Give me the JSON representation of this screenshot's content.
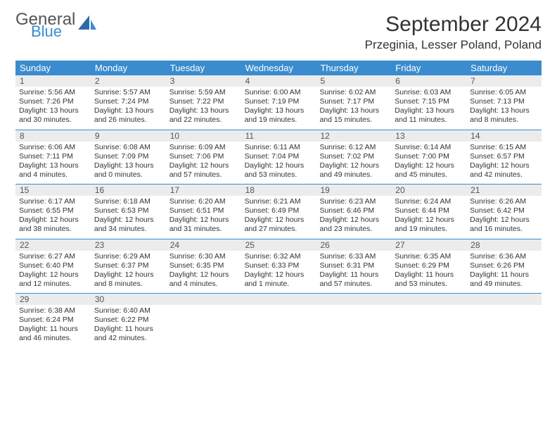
{
  "logo": {
    "general": "General",
    "blue": "Blue"
  },
  "title": "September 2024",
  "location": "Przeginia, Lesser Poland, Poland",
  "colors": {
    "header_bg": "#3a8cce",
    "daynum_bg": "#ececec",
    "border": "#3a8cce",
    "text": "#333333",
    "logo_gray": "#545454",
    "logo_blue": "#3a8cce"
  },
  "day_names": [
    "Sunday",
    "Monday",
    "Tuesday",
    "Wednesday",
    "Thursday",
    "Friday",
    "Saturday"
  ],
  "days": [
    {
      "n": "1",
      "sunrise": "Sunrise: 5:56 AM",
      "sunset": "Sunset: 7:26 PM",
      "daylight": "Daylight: 13 hours and 30 minutes."
    },
    {
      "n": "2",
      "sunrise": "Sunrise: 5:57 AM",
      "sunset": "Sunset: 7:24 PM",
      "daylight": "Daylight: 13 hours and 26 minutes."
    },
    {
      "n": "3",
      "sunrise": "Sunrise: 5:59 AM",
      "sunset": "Sunset: 7:22 PM",
      "daylight": "Daylight: 13 hours and 22 minutes."
    },
    {
      "n": "4",
      "sunrise": "Sunrise: 6:00 AM",
      "sunset": "Sunset: 7:19 PM",
      "daylight": "Daylight: 13 hours and 19 minutes."
    },
    {
      "n": "5",
      "sunrise": "Sunrise: 6:02 AM",
      "sunset": "Sunset: 7:17 PM",
      "daylight": "Daylight: 13 hours and 15 minutes."
    },
    {
      "n": "6",
      "sunrise": "Sunrise: 6:03 AM",
      "sunset": "Sunset: 7:15 PM",
      "daylight": "Daylight: 13 hours and 11 minutes."
    },
    {
      "n": "7",
      "sunrise": "Sunrise: 6:05 AM",
      "sunset": "Sunset: 7:13 PM",
      "daylight": "Daylight: 13 hours and 8 minutes."
    },
    {
      "n": "8",
      "sunrise": "Sunrise: 6:06 AM",
      "sunset": "Sunset: 7:11 PM",
      "daylight": "Daylight: 13 hours and 4 minutes."
    },
    {
      "n": "9",
      "sunrise": "Sunrise: 6:08 AM",
      "sunset": "Sunset: 7:09 PM",
      "daylight": "Daylight: 13 hours and 0 minutes."
    },
    {
      "n": "10",
      "sunrise": "Sunrise: 6:09 AM",
      "sunset": "Sunset: 7:06 PM",
      "daylight": "Daylight: 12 hours and 57 minutes."
    },
    {
      "n": "11",
      "sunrise": "Sunrise: 6:11 AM",
      "sunset": "Sunset: 7:04 PM",
      "daylight": "Daylight: 12 hours and 53 minutes."
    },
    {
      "n": "12",
      "sunrise": "Sunrise: 6:12 AM",
      "sunset": "Sunset: 7:02 PM",
      "daylight": "Daylight: 12 hours and 49 minutes."
    },
    {
      "n": "13",
      "sunrise": "Sunrise: 6:14 AM",
      "sunset": "Sunset: 7:00 PM",
      "daylight": "Daylight: 12 hours and 45 minutes."
    },
    {
      "n": "14",
      "sunrise": "Sunrise: 6:15 AM",
      "sunset": "Sunset: 6:57 PM",
      "daylight": "Daylight: 12 hours and 42 minutes."
    },
    {
      "n": "15",
      "sunrise": "Sunrise: 6:17 AM",
      "sunset": "Sunset: 6:55 PM",
      "daylight": "Daylight: 12 hours and 38 minutes."
    },
    {
      "n": "16",
      "sunrise": "Sunrise: 6:18 AM",
      "sunset": "Sunset: 6:53 PM",
      "daylight": "Daylight: 12 hours and 34 minutes."
    },
    {
      "n": "17",
      "sunrise": "Sunrise: 6:20 AM",
      "sunset": "Sunset: 6:51 PM",
      "daylight": "Daylight: 12 hours and 31 minutes."
    },
    {
      "n": "18",
      "sunrise": "Sunrise: 6:21 AM",
      "sunset": "Sunset: 6:49 PM",
      "daylight": "Daylight: 12 hours and 27 minutes."
    },
    {
      "n": "19",
      "sunrise": "Sunrise: 6:23 AM",
      "sunset": "Sunset: 6:46 PM",
      "daylight": "Daylight: 12 hours and 23 minutes."
    },
    {
      "n": "20",
      "sunrise": "Sunrise: 6:24 AM",
      "sunset": "Sunset: 6:44 PM",
      "daylight": "Daylight: 12 hours and 19 minutes."
    },
    {
      "n": "21",
      "sunrise": "Sunrise: 6:26 AM",
      "sunset": "Sunset: 6:42 PM",
      "daylight": "Daylight: 12 hours and 16 minutes."
    },
    {
      "n": "22",
      "sunrise": "Sunrise: 6:27 AM",
      "sunset": "Sunset: 6:40 PM",
      "daylight": "Daylight: 12 hours and 12 minutes."
    },
    {
      "n": "23",
      "sunrise": "Sunrise: 6:29 AM",
      "sunset": "Sunset: 6:37 PM",
      "daylight": "Daylight: 12 hours and 8 minutes."
    },
    {
      "n": "24",
      "sunrise": "Sunrise: 6:30 AM",
      "sunset": "Sunset: 6:35 PM",
      "daylight": "Daylight: 12 hours and 4 minutes."
    },
    {
      "n": "25",
      "sunrise": "Sunrise: 6:32 AM",
      "sunset": "Sunset: 6:33 PM",
      "daylight": "Daylight: 12 hours and 1 minute."
    },
    {
      "n": "26",
      "sunrise": "Sunrise: 6:33 AM",
      "sunset": "Sunset: 6:31 PM",
      "daylight": "Daylight: 11 hours and 57 minutes."
    },
    {
      "n": "27",
      "sunrise": "Sunrise: 6:35 AM",
      "sunset": "Sunset: 6:29 PM",
      "daylight": "Daylight: 11 hours and 53 minutes."
    },
    {
      "n": "28",
      "sunrise": "Sunrise: 6:36 AM",
      "sunset": "Sunset: 6:26 PM",
      "daylight": "Daylight: 11 hours and 49 minutes."
    },
    {
      "n": "29",
      "sunrise": "Sunrise: 6:38 AM",
      "sunset": "Sunset: 6:24 PM",
      "daylight": "Daylight: 11 hours and 46 minutes."
    },
    {
      "n": "30",
      "sunrise": "Sunrise: 6:40 AM",
      "sunset": "Sunset: 6:22 PM",
      "daylight": "Daylight: 11 hours and 42 minutes."
    }
  ]
}
